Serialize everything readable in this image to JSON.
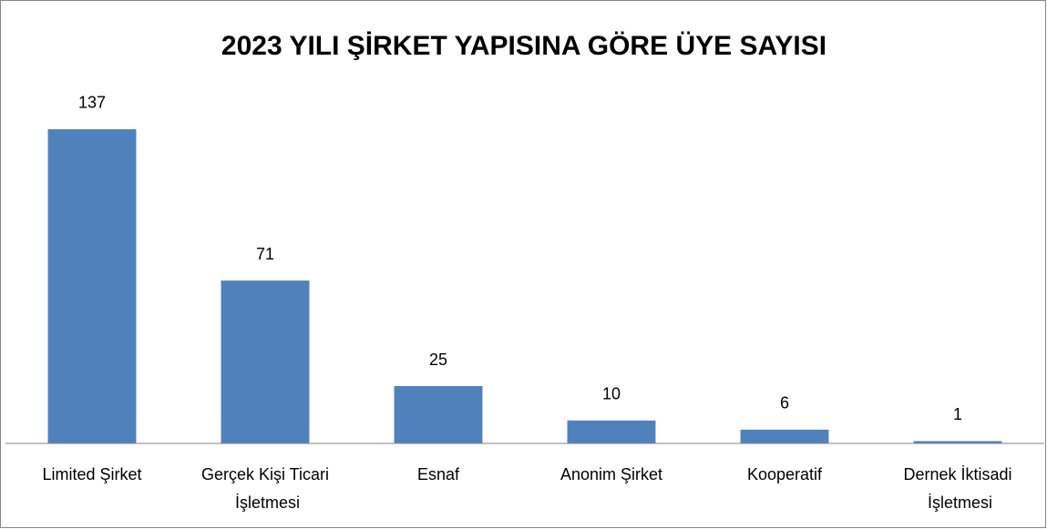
{
  "chart_data": {
    "type": "bar",
    "title": "2023 YILI ŞİRKET YAPISINA GÖRE ÜYE SAYISI",
    "categories": [
      "Limited Şirket",
      "Gerçek Kişi Ticari İşletmesi",
      "Esnaf",
      "Anonim Şirket",
      "Kooperatif",
      "Dernek İktisadi İşletmesi"
    ],
    "values": [
      137,
      71,
      25,
      10,
      6,
      1
    ],
    "color": "#4f81bd",
    "ylim": [
      0,
      160
    ]
  }
}
